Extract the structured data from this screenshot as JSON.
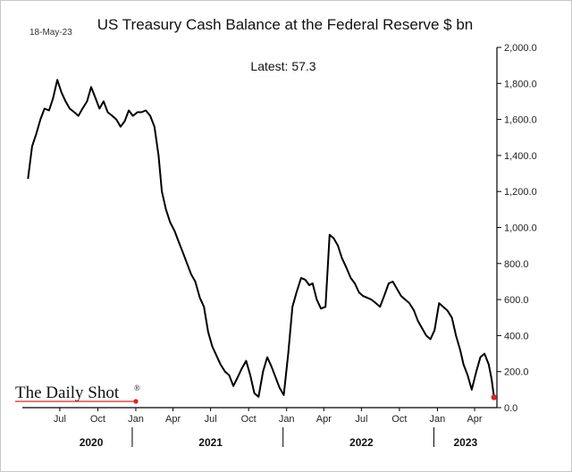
{
  "date_stamp": "18-May-23",
  "annotation": "Latest:  57.3",
  "logo_text": "The Daily Shot",
  "logo_mark": "®",
  "colors": {
    "line": "#000000",
    "latest_marker": "#e02020",
    "axis": "#000000"
  },
  "chart_data": {
    "type": "line",
    "title": "US Treasury Cash Balance at the Federal Reserve $ bn",
    "xlabel": "",
    "ylabel": "",
    "ylim": [
      0,
      2000
    ],
    "grid": false,
    "y_axis_side": "right",
    "yticks": [
      "0.0",
      "200.0",
      "400.0",
      "600.0",
      "800.0",
      "1,000.0",
      "1,200.0",
      "1,400.0",
      "1,600.0",
      "1,800.0",
      "2,000.0"
    ],
    "ytick_values": [
      0,
      200,
      400,
      600,
      800,
      1000,
      1200,
      1400,
      1600,
      1800,
      2000
    ],
    "month_ticks": [
      {
        "label": "Jul",
        "date": "2020-07-01"
      },
      {
        "label": "Oct",
        "date": "2020-10-01"
      },
      {
        "label": "Jan",
        "date": "2021-01-01"
      },
      {
        "label": "Apr",
        "date": "2021-04-01"
      },
      {
        "label": "Jul",
        "date": "2021-07-01"
      },
      {
        "label": "Oct",
        "date": "2021-10-01"
      },
      {
        "label": "Jan",
        "date": "2022-01-01"
      },
      {
        "label": "Apr",
        "date": "2022-04-01"
      },
      {
        "label": "Jul",
        "date": "2022-07-01"
      },
      {
        "label": "Oct",
        "date": "2022-10-01"
      },
      {
        "label": "Jan",
        "date": "2023-01-01"
      },
      {
        "label": "Apr",
        "date": "2023-04-01"
      }
    ],
    "year_labels": [
      {
        "label": "2020",
        "date": "2020-09-15"
      },
      {
        "label": "2021",
        "date": "2021-07-01"
      },
      {
        "label": "2022",
        "date": "2022-07-01"
      },
      {
        "label": "2023",
        "date": "2023-03-10"
      }
    ],
    "year_separators": [
      "2021-01-01",
      "2022-01-01",
      "2023-01-01"
    ],
    "series": [
      {
        "x": [
          "2020-04-15",
          "2020-04-25",
          "2020-05-05",
          "2020-05-15",
          "2020-05-25",
          "2020-06-05",
          "2020-06-15",
          "2020-06-25",
          "2020-07-05",
          "2020-07-15",
          "2020-07-25",
          "2020-08-05",
          "2020-08-15",
          "2020-08-25",
          "2020-09-05",
          "2020-09-15",
          "2020-09-25",
          "2020-10-05",
          "2020-10-15",
          "2020-10-25",
          "2020-11-05",
          "2020-11-15",
          "2020-11-25",
          "2020-12-05",
          "2020-12-15",
          "2020-12-25",
          "2021-01-05",
          "2021-01-15",
          "2021-01-25",
          "2021-02-05",
          "2021-02-15",
          "2021-02-25",
          "2021-03-05",
          "2021-03-15",
          "2021-03-25",
          "2021-04-05",
          "2021-04-15",
          "2021-04-25",
          "2021-05-05",
          "2021-05-15",
          "2021-05-25",
          "2021-06-05",
          "2021-06-15",
          "2021-06-25",
          "2021-07-05",
          "2021-07-15",
          "2021-07-25",
          "2021-08-05",
          "2021-08-15",
          "2021-08-25",
          "2021-09-05",
          "2021-09-15",
          "2021-09-25",
          "2021-10-05",
          "2021-10-15",
          "2021-10-25",
          "2021-11-05",
          "2021-11-15",
          "2021-11-25",
          "2021-12-05",
          "2021-12-15",
          "2021-12-25",
          "2022-01-05",
          "2022-01-15",
          "2022-01-25",
          "2022-02-05",
          "2022-02-15",
          "2022-02-25",
          "2022-03-05",
          "2022-03-15",
          "2022-03-25",
          "2022-04-05",
          "2022-04-15",
          "2022-04-25",
          "2022-05-05",
          "2022-05-15",
          "2022-05-25",
          "2022-06-05",
          "2022-06-15",
          "2022-06-25",
          "2022-07-05",
          "2022-07-15",
          "2022-07-25",
          "2022-08-05",
          "2022-08-15",
          "2022-08-25",
          "2022-09-05",
          "2022-09-15",
          "2022-09-25",
          "2022-10-05",
          "2022-10-15",
          "2022-10-25",
          "2022-11-05",
          "2022-11-15",
          "2022-11-25",
          "2022-12-05",
          "2022-12-15",
          "2022-12-25",
          "2023-01-05",
          "2023-01-15",
          "2023-01-25",
          "2023-02-05",
          "2023-02-15",
          "2023-02-25",
          "2023-03-05",
          "2023-03-15",
          "2023-03-25",
          "2023-04-05",
          "2023-04-15",
          "2023-04-25",
          "2023-05-05",
          "2023-05-12",
          "2023-05-18"
        ],
        "values": [
          1270,
          1450,
          1520,
          1600,
          1660,
          1650,
          1720,
          1820,
          1750,
          1700,
          1660,
          1640,
          1620,
          1660,
          1700,
          1780,
          1720,
          1660,
          1700,
          1640,
          1620,
          1600,
          1560,
          1590,
          1650,
          1620,
          1640,
          1640,
          1650,
          1620,
          1560,
          1400,
          1200,
          1100,
          1030,
          980,
          920,
          860,
          800,
          740,
          700,
          610,
          560,
          420,
          340,
          290,
          240,
          200,
          180,
          120,
          170,
          220,
          260,
          180,
          80,
          60,
          200,
          280,
          230,
          170,
          110,
          70,
          300,
          560,
          640,
          720,
          710,
          680,
          690,
          600,
          550,
          560,
          960,
          940,
          900,
          830,
          780,
          720,
          690,
          640,
          620,
          610,
          600,
          580,
          560,
          620,
          690,
          700,
          660,
          620,
          600,
          580,
          540,
          480,
          440,
          400,
          380,
          430,
          580,
          560,
          540,
          500,
          400,
          320,
          240,
          180,
          100,
          200,
          280,
          300,
          240,
          160,
          57.3
        ]
      }
    ],
    "latest_value": 57.3
  }
}
